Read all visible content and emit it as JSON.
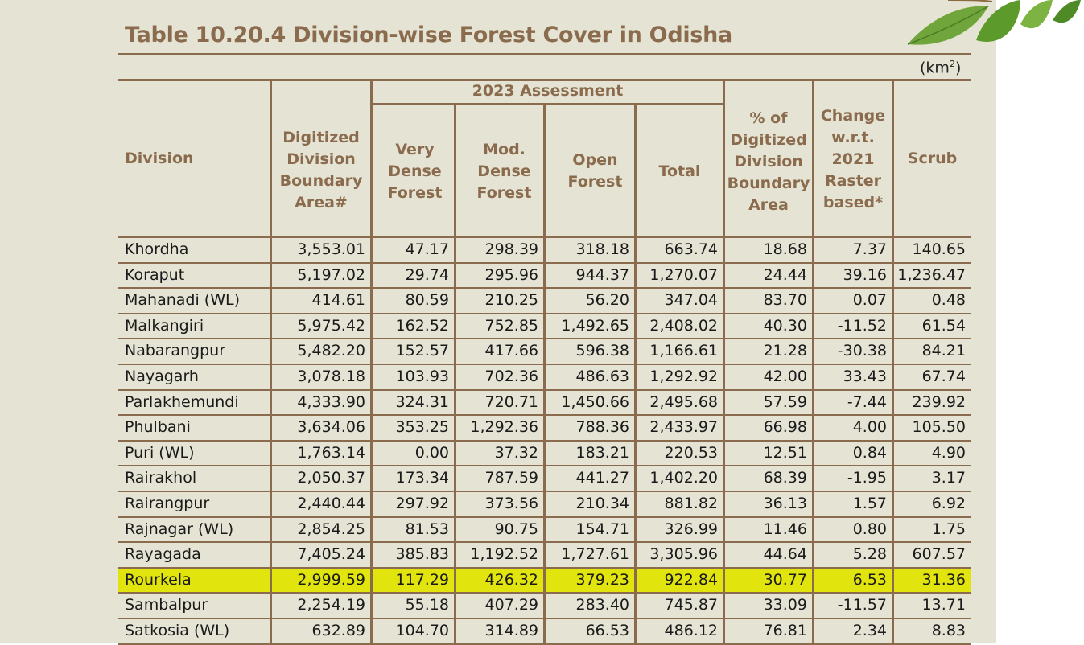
{
  "title": "Table 10.20.4 Division-wise Forest Cover in Odisha",
  "unit": "(km",
  "unit_sup": "2",
  "unit_close": ")",
  "headers": {
    "division": "Division",
    "area": "Digitized Division Boundary Area#",
    "assessment": "2023 Assessment",
    "vdf": "Very Dense Forest",
    "mdf": "Mod. Dense Forest",
    "of": "Open Forest",
    "total": "Total",
    "pct": "% of Digitized Division Boundary Area",
    "change": "Change w.r.t. 2021 Raster based*",
    "scrub": "Scrub"
  },
  "highlight_color": "#e2e40d",
  "rows": [
    {
      "name": "Khordha",
      "area": "3,553.01",
      "vdf": "47.17",
      "mdf": "298.39",
      "of": "318.18",
      "total": "663.74",
      "pct": "18.68",
      "change": "7.37",
      "scrub": "140.65"
    },
    {
      "name": "Koraput",
      "area": "5,197.02",
      "vdf": "29.74",
      "mdf": "295.96",
      "of": "944.37",
      "total": "1,270.07",
      "pct": "24.44",
      "change": "39.16",
      "scrub": "1,236.47"
    },
    {
      "name": "Mahanadi (WL)",
      "area": "414.61",
      "vdf": "80.59",
      "mdf": "210.25",
      "of": "56.20",
      "total": "347.04",
      "pct": "83.70",
      "change": "0.07",
      "scrub": "0.48"
    },
    {
      "name": "Malkangiri",
      "area": "5,975.42",
      "vdf": "162.52",
      "mdf": "752.85",
      "of": "1,492.65",
      "total": "2,408.02",
      "pct": "40.30",
      "change": "-11.52",
      "scrub": "61.54"
    },
    {
      "name": "Nabarangpur",
      "area": "5,482.20",
      "vdf": "152.57",
      "mdf": "417.66",
      "of": "596.38",
      "total": "1,166.61",
      "pct": "21.28",
      "change": "-30.38",
      "scrub": "84.21"
    },
    {
      "name": "Nayagarh",
      "area": "3,078.18",
      "vdf": "103.93",
      "mdf": "702.36",
      "of": "486.63",
      "total": "1,292.92",
      "pct": "42.00",
      "change": "33.43",
      "scrub": "67.74"
    },
    {
      "name": "Parlakhemundi",
      "area": "4,333.90",
      "vdf": "324.31",
      "mdf": "720.71",
      "of": "1,450.66",
      "total": "2,495.68",
      "pct": "57.59",
      "change": "-7.44",
      "scrub": "239.92"
    },
    {
      "name": "Phulbani",
      "area": "3,634.06",
      "vdf": "353.25",
      "mdf": "1,292.36",
      "of": "788.36",
      "total": "2,433.97",
      "pct": "66.98",
      "change": "4.00",
      "scrub": "105.50"
    },
    {
      "name": "Puri (WL)",
      "area": "1,763.14",
      "vdf": "0.00",
      "mdf": "37.32",
      "of": "183.21",
      "total": "220.53",
      "pct": "12.51",
      "change": "0.84",
      "scrub": "4.90"
    },
    {
      "name": "Rairakhol",
      "area": "2,050.37",
      "vdf": "173.34",
      "mdf": "787.59",
      "of": "441.27",
      "total": "1,402.20",
      "pct": "68.39",
      "change": "-1.95",
      "scrub": "3.17"
    },
    {
      "name": "Rairangpur",
      "area": "2,440.44",
      "vdf": "297.92",
      "mdf": "373.56",
      "of": "210.34",
      "total": "881.82",
      "pct": "36.13",
      "change": "1.57",
      "scrub": "6.92"
    },
    {
      "name": "Rajnagar (WL)",
      "area": "2,854.25",
      "vdf": "81.53",
      "mdf": "90.75",
      "of": "154.71",
      "total": "326.99",
      "pct": "11.46",
      "change": "0.80",
      "scrub": "1.75"
    },
    {
      "name": "Rayagada",
      "area": "7,405.24",
      "vdf": "385.83",
      "mdf": "1,192.52",
      "of": "1,727.61",
      "total": "3,305.96",
      "pct": "44.64",
      "change": "5.28",
      "scrub": "607.57"
    },
    {
      "name": "Rourkela",
      "area": "2,999.59",
      "vdf": "117.29",
      "mdf": "426.32",
      "of": "379.23",
      "total": "922.84",
      "pct": "30.77",
      "change": "6.53",
      "scrub": "31.36",
      "highlight": true
    },
    {
      "name": "Sambalpur",
      "area": "2,254.19",
      "vdf": "55.18",
      "mdf": "407.29",
      "of": "283.40",
      "total": "745.87",
      "pct": "33.09",
      "change": "-11.57",
      "scrub": "13.71"
    },
    {
      "name": "Satkosia (WL)",
      "area": "632.89",
      "vdf": "104.70",
      "mdf": "314.89",
      "of": "66.53",
      "total": "486.12",
      "pct": "76.81",
      "change": "2.34",
      "scrub": "8.83"
    }
  ]
}
